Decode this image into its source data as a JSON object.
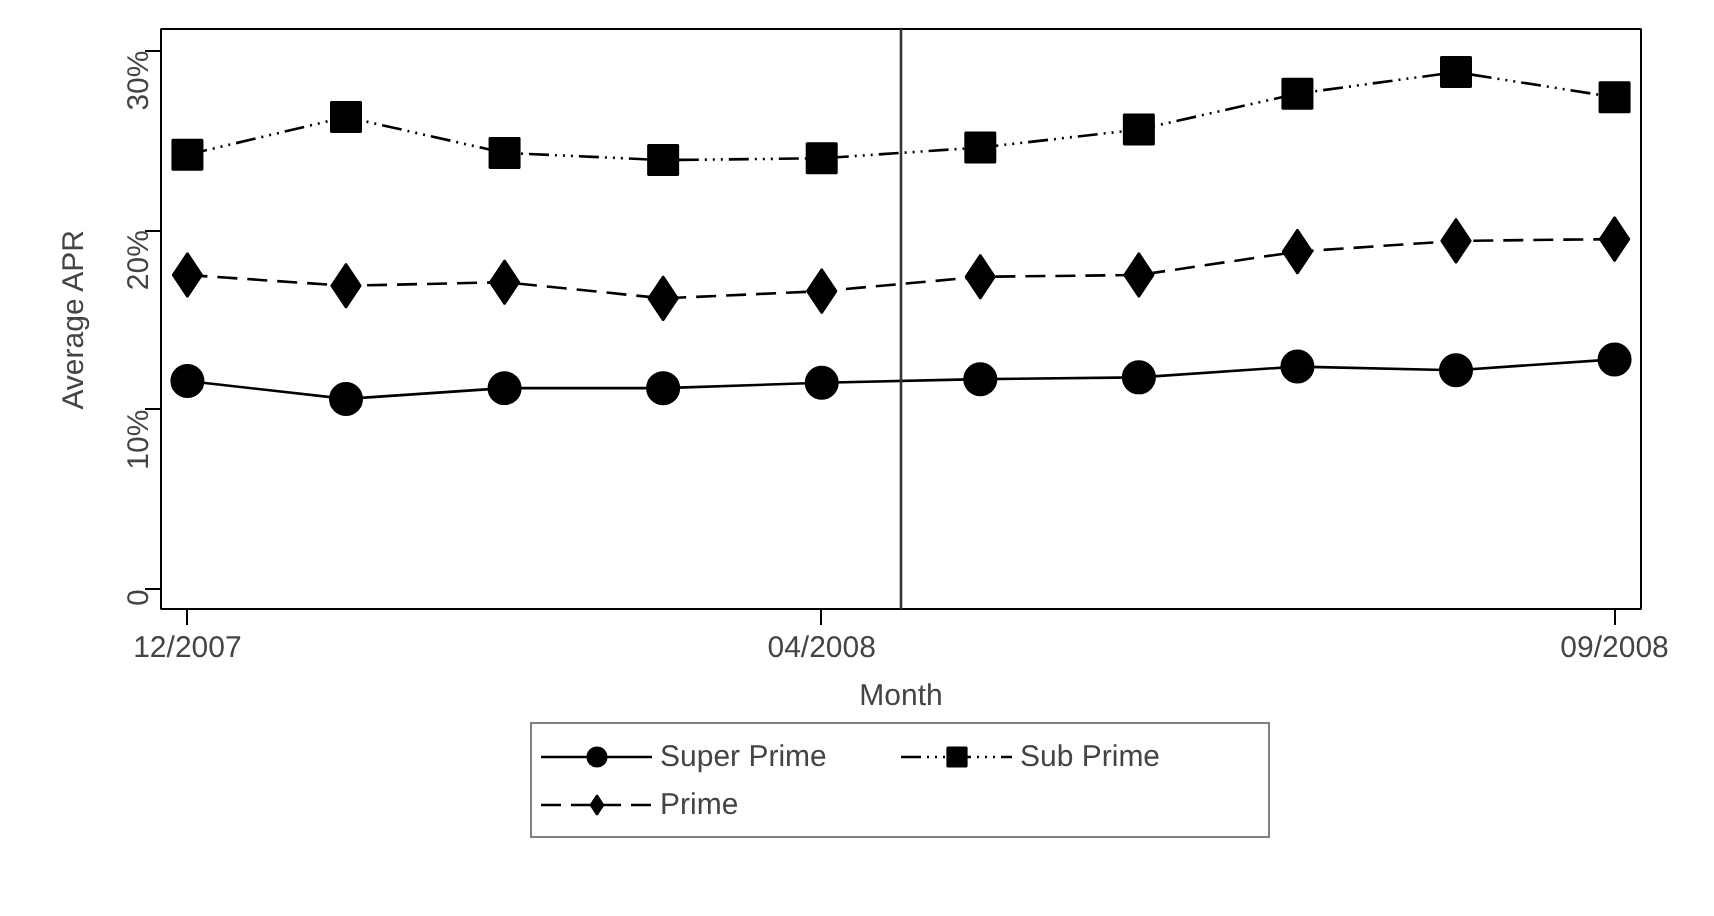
{
  "chart_data": {
    "type": "line",
    "xlabel": "Month",
    "ylabel": "Average APR",
    "x": [
      "2007-12",
      "2008-01",
      "2008-02",
      "2008-03",
      "2008-04",
      "2008-05",
      "2008-06",
      "2008-07",
      "2008-08",
      "2008-09"
    ],
    "series": [
      {
        "name": "Super Prime",
        "color": "#000000",
        "marker": "circle",
        "line_style": "solid",
        "values": [
          11.6,
          10.6,
          11.2,
          11.2,
          11.5,
          11.7,
          11.8,
          12.4,
          12.2,
          12.8
        ]
      },
      {
        "name": "Prime",
        "color": "#000000",
        "marker": "diamond",
        "line_style": "dashed",
        "values": [
          17.5,
          16.9,
          17.1,
          16.2,
          16.6,
          17.4,
          17.5,
          18.8,
          19.4,
          19.5
        ]
      },
      {
        "name": "Sub Prime",
        "color": "#000000",
        "marker": "square",
        "line_style": "dotted",
        "values": [
          24.2,
          26.3,
          24.3,
          23.9,
          24.0,
          24.6,
          25.6,
          27.6,
          28.8,
          27.4
        ]
      }
    ],
    "xlim": [
      "2007-11-26",
      "2008-09-06"
    ],
    "xticks": [
      {
        "value": "2007-12",
        "label": "12/2007"
      },
      {
        "value": "2008-04",
        "label": "04/2008"
      },
      {
        "value": "2008-09",
        "label": "09/2008"
      }
    ],
    "ylim": [
      -1.1,
      31.2
    ],
    "yticks": [
      0,
      {
        "value": 10,
        "label": "10%"
      },
      {
        "value": 20,
        "label": "20%"
      },
      {
        "value": 30,
        "label": "30%"
      }
    ],
    "ref_lines": [
      {
        "axis": "x",
        "value": "2008-04-16",
        "label": null,
        "color": "#333333"
      }
    ],
    "grid": false,
    "legend": "bottom"
  }
}
